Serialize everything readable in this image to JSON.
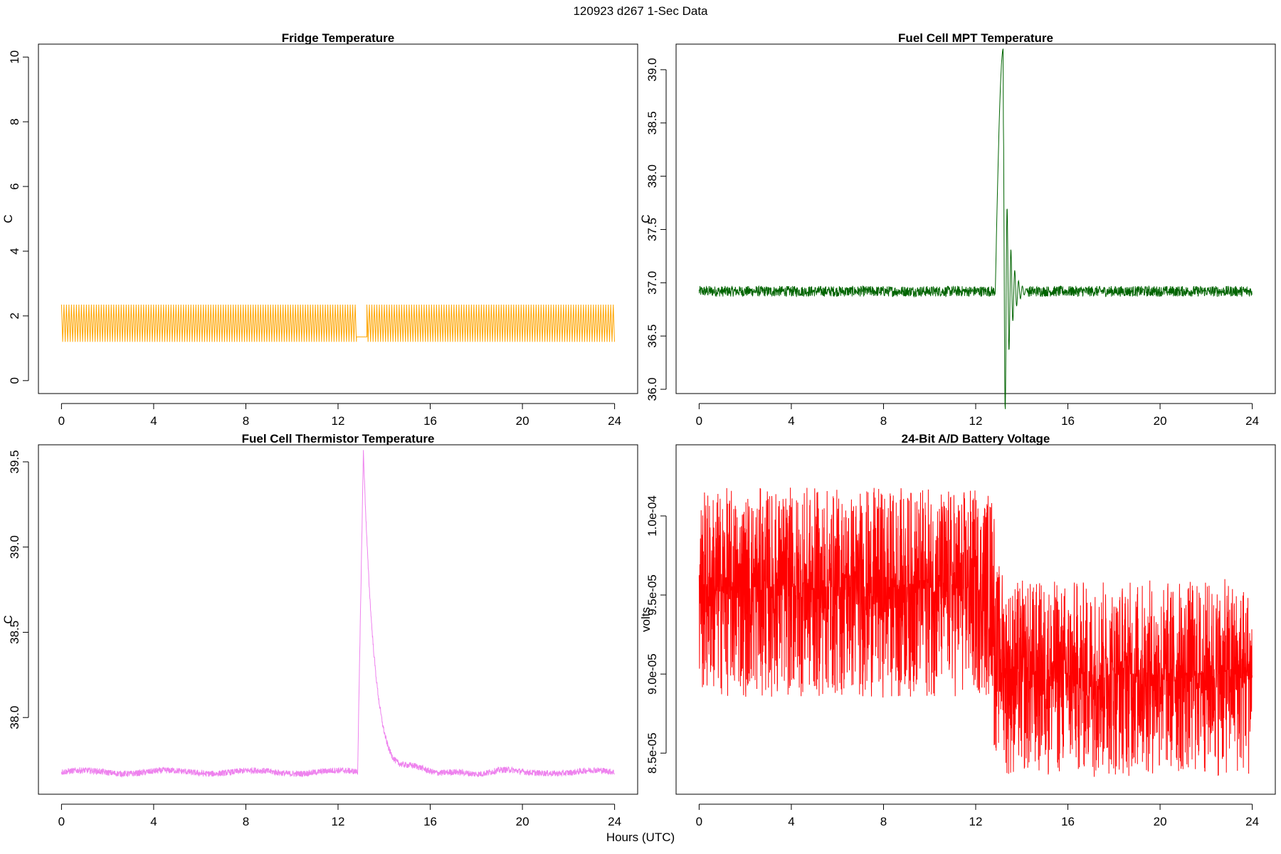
{
  "page": {
    "title": "120923   d267   1-Sec Data",
    "xlabel": "Hours (UTC)"
  },
  "chart_data": [
    {
      "type": "line",
      "title": "Fridge Temperature",
      "ylabel": "C",
      "color": "#FFA500",
      "xlim": [
        -1,
        25
      ],
      "ylim": [
        -0.4,
        10.4
      ],
      "xticks": [
        0,
        4,
        8,
        12,
        16,
        20,
        24
      ],
      "yticks": [
        0,
        2,
        4,
        6,
        8,
        10
      ],
      "yticklabels": [
        "0",
        "2",
        "4",
        "6",
        "8",
        "10"
      ],
      "segments": [
        {
          "start": 0.0,
          "end": 12.8,
          "low": 1.2,
          "high": 2.35,
          "period": 0.108
        },
        {
          "start": 12.8,
          "end": 13.25,
          "flat": 1.35
        },
        {
          "start": 13.25,
          "end": 24.0,
          "low": 1.2,
          "high": 2.35,
          "period": 0.108
        }
      ],
      "series": [
        {
          "name": "Fridge Temperature",
          "baseline_low": 1.2,
          "baseline_high": 2.35
        }
      ]
    },
    {
      "type": "line",
      "title": "Fuel Cell MPT Temperature",
      "ylabel": "C",
      "color": "#006400",
      "xlim": [
        -1,
        25
      ],
      "ylim": [
        35.96,
        39.24
      ],
      "xticks": [
        0,
        4,
        8,
        12,
        16,
        20,
        24
      ],
      "yticks": [
        36.0,
        36.5,
        37.0,
        37.5,
        38.0,
        38.5,
        39.0
      ],
      "yticklabels": [
        "36.0",
        "36.5",
        "37.0",
        "37.5",
        "38.0",
        "38.5",
        "39.0"
      ],
      "series": [
        {
          "name": "Fuel Cell MPT Temperature",
          "baseline": 36.92,
          "noise": 0.05,
          "event_x": 12.85,
          "peak": 39.2,
          "trough": 36.05,
          "second_peak": 37.55,
          "second_trough": 36.45
        }
      ]
    },
    {
      "type": "line",
      "title": "Fuel Cell Thermistor Temperature",
      "ylabel": "C",
      "color": "#EE82EE",
      "xlim": [
        -1,
        25
      ],
      "ylim": [
        37.55,
        39.6
      ],
      "xticks": [
        0,
        4,
        8,
        12,
        16,
        20,
        24
      ],
      "yticks": [
        38.0,
        38.5,
        39.0,
        39.5
      ],
      "yticklabels": [
        "38.0",
        "38.5",
        "39.0",
        "39.5"
      ],
      "series": [
        {
          "name": "Fuel Cell Thermistor Temperature",
          "baseline": 37.68,
          "noise": 0.018,
          "event_x": 12.85,
          "peak": 39.55
        }
      ]
    },
    {
      "type": "line",
      "title": "24-Bit A/D Battery Voltage",
      "ylabel": "volts",
      "color": "#FF0000",
      "xlim": [
        -1,
        25
      ],
      "ylim": [
        8.24e-05,
        0.0001045
      ],
      "xticks": [
        0,
        4,
        8,
        12,
        16,
        20,
        24
      ],
      "yticks": [
        8.5e-05,
        9e-05,
        9.5e-05,
        0.0001
      ],
      "yticklabels": [
        "8.5e-05",
        "9.0e-05",
        "9.5e-05",
        "1.0e-04"
      ],
      "segments": [
        {
          "start": 0.0,
          "end": 12.8,
          "mean": 9.55e-05,
          "low": 8.85e-05,
          "high": 0.0001018
        },
        {
          "start": 12.8,
          "end": 13.3,
          "mean": 9.1e-05,
          "low": 8.5e-05,
          "high": 9.7e-05
        },
        {
          "start": 13.3,
          "end": 24.0,
          "mean": 9e-05,
          "low": 8.35e-05,
          "high": 9.6e-05
        }
      ],
      "series": [
        {
          "name": "24-Bit A/D Battery Voltage"
        }
      ]
    }
  ]
}
